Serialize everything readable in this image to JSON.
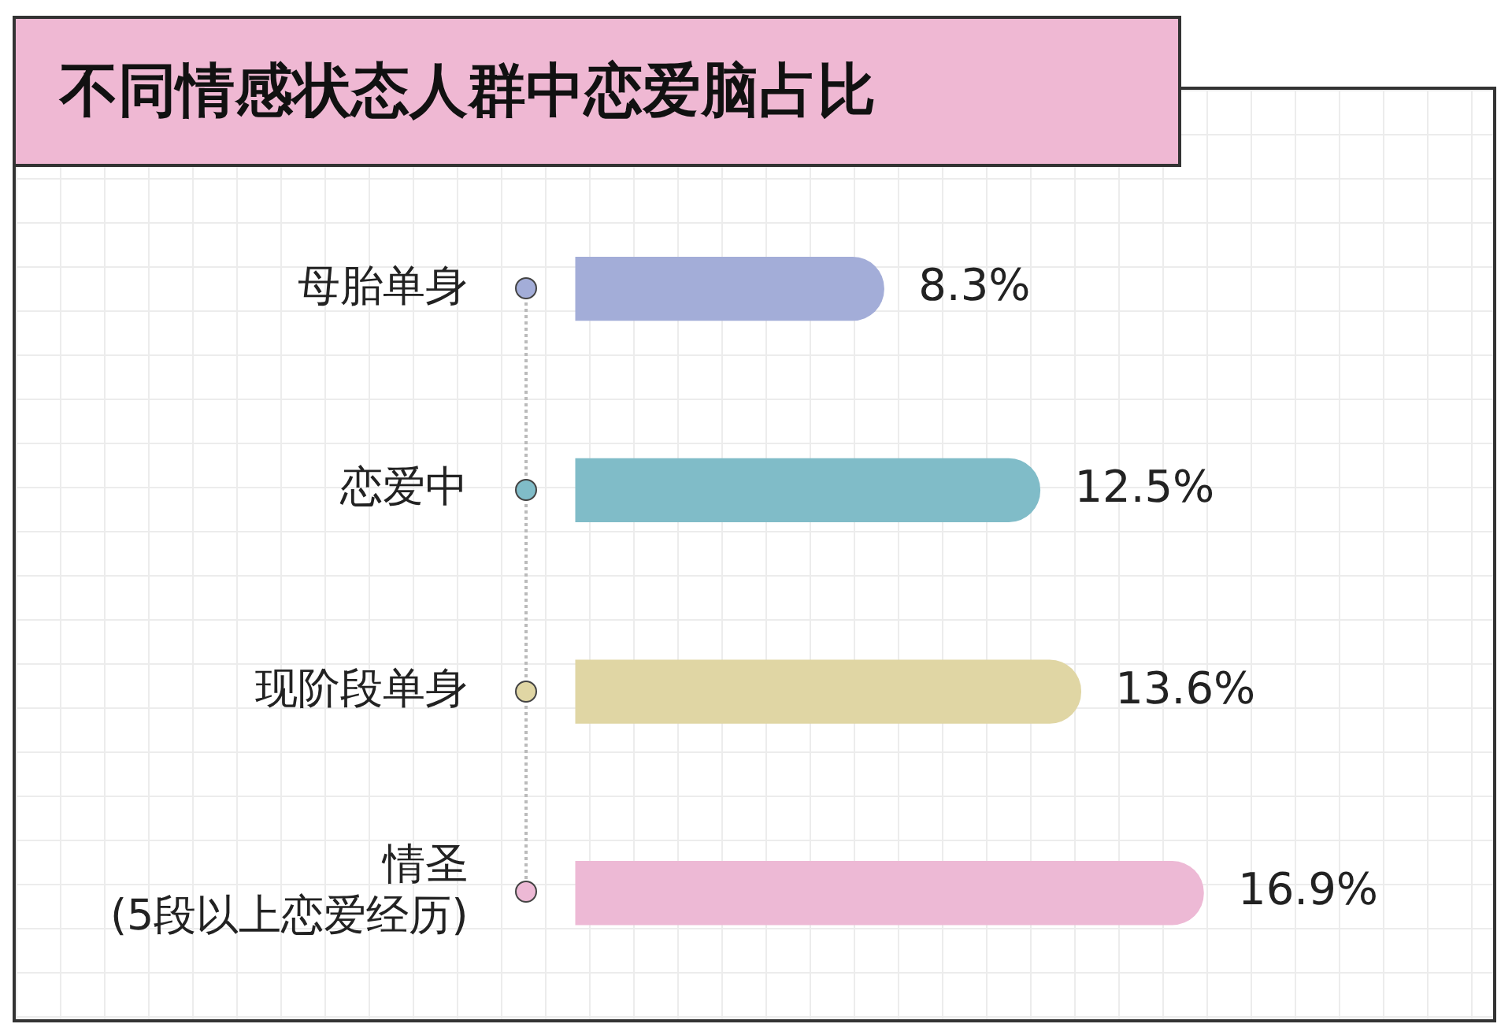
{
  "chart_data": {
    "type": "bar",
    "orientation": "horizontal",
    "title": "不同情感状态人群中恋爱脑占比",
    "categories": [
      "母胎单身",
      "恋爱中",
      "现阶段单身",
      "情圣\n(5段以上恋爱经历)"
    ],
    "values": [
      8.3,
      12.5,
      13.6,
      16.9
    ],
    "colors": [
      "#a3add8",
      "#80bcc8",
      "#e0d6a4",
      "#edb9d5"
    ],
    "value_labels": [
      "8.3%",
      "12.5%",
      "13.6%",
      "16.9%"
    ],
    "legend": false
  }
}
